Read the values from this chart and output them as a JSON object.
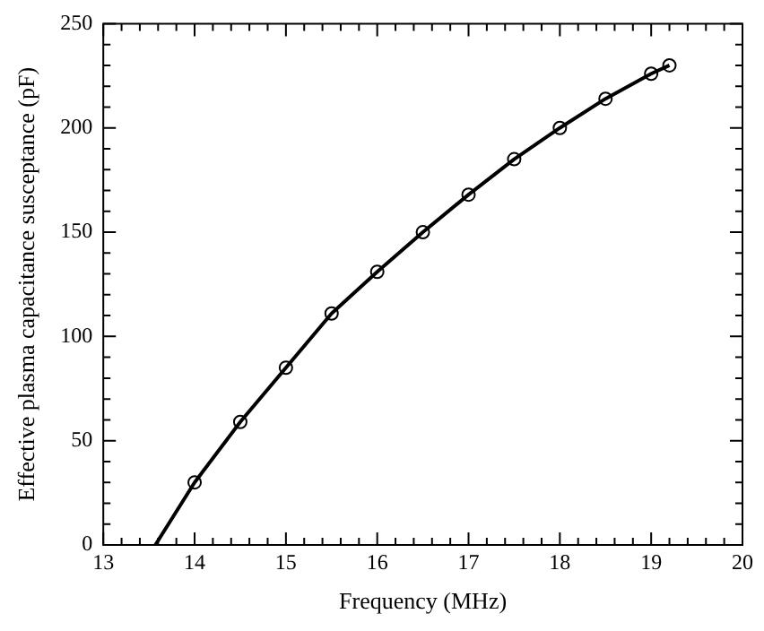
{
  "chart_data": {
    "type": "line",
    "xlabel": "Frequency (MHz)",
    "ylabel": "Effective plasma capacitance susceptance (pF)",
    "xlim": [
      13,
      20
    ],
    "ylim": [
      0,
      250
    ],
    "xticks": [
      13,
      {
        "value": 13.2,
        "label": null
      },
      {
        "value": 13.4,
        "label": null
      },
      {
        "value": 13.6,
        "label": null
      },
      {
        "value": 13.8,
        "label": null
      },
      14,
      {
        "value": 14.2,
        "label": null
      },
      {
        "value": 14.4,
        "label": null
      },
      {
        "value": 14.6,
        "label": null
      },
      {
        "value": 14.8,
        "label": null
      },
      15,
      {
        "value": 15.2,
        "label": null
      },
      {
        "value": 15.4,
        "label": null
      },
      {
        "value": 15.6,
        "label": null
      },
      {
        "value": 15.8,
        "label": null
      },
      16,
      {
        "value": 16.2,
        "label": null
      },
      {
        "value": 16.4,
        "label": null
      },
      {
        "value": 16.6,
        "label": null
      },
      {
        "value": 16.8,
        "label": null
      },
      17,
      {
        "value": 17.2,
        "label": null
      },
      {
        "value": 17.4,
        "label": null
      },
      {
        "value": 17.6,
        "label": null
      },
      {
        "value": 17.8,
        "label": null
      },
      18,
      {
        "value": 18.2,
        "label": null
      },
      {
        "value": 18.4,
        "label": null
      },
      {
        "value": 18.6,
        "label": null
      },
      {
        "value": 18.8,
        "label": null
      },
      19,
      {
        "value": 19.2,
        "label": null
      },
      {
        "value": 19.4,
        "label": null
      },
      {
        "value": 19.6,
        "label": null
      },
      {
        "value": 19.8,
        "label": null
      },
      20
    ],
    "yticks": [
      0,
      {
        "value": 10,
        "label": null
      },
      {
        "value": 20,
        "label": null
      },
      {
        "value": 30,
        "label": null
      },
      {
        "value": 40,
        "label": null
      },
      50,
      {
        "value": 60,
        "label": null
      },
      {
        "value": 70,
        "label": null
      },
      {
        "value": 80,
        "label": null
      },
      {
        "value": 90,
        "label": null
      },
      100,
      {
        "value": 110,
        "label": null
      },
      {
        "value": 120,
        "label": null
      },
      {
        "value": 130,
        "label": null
      },
      {
        "value": 140,
        "label": null
      },
      150,
      {
        "value": 160,
        "label": null
      },
      {
        "value": 170,
        "label": null
      },
      {
        "value": 180,
        "label": null
      },
      {
        "value": 190,
        "label": null
      },
      200,
      {
        "value": 210,
        "label": null
      },
      {
        "value": 220,
        "label": null
      },
      {
        "value": 230,
        "label": null
      },
      {
        "value": 240,
        "label": null
      },
      250
    ],
    "grid": false,
    "legend": false,
    "series": [
      {
        "color": "#000000",
        "marker": "none",
        "x": [
          13.57,
          14,
          14.5,
          15,
          15.5,
          16,
          16.5,
          17,
          17.5,
          18,
          18.5,
          19,
          19.2
        ],
        "values": [
          0,
          30,
          59,
          85,
          111,
          131,
          150,
          168,
          185,
          200,
          214,
          226,
          230
        ]
      },
      {
        "type": "scatter",
        "color": "#000000",
        "marker": "circle",
        "x": [
          14,
          14.5,
          15,
          15.5,
          16,
          16.5,
          17,
          17.5,
          18,
          18.5,
          19,
          19.2
        ],
        "values": [
          30,
          59,
          85,
          111,
          131,
          150,
          168,
          185,
          200,
          214,
          226,
          230
        ]
      }
    ]
  }
}
